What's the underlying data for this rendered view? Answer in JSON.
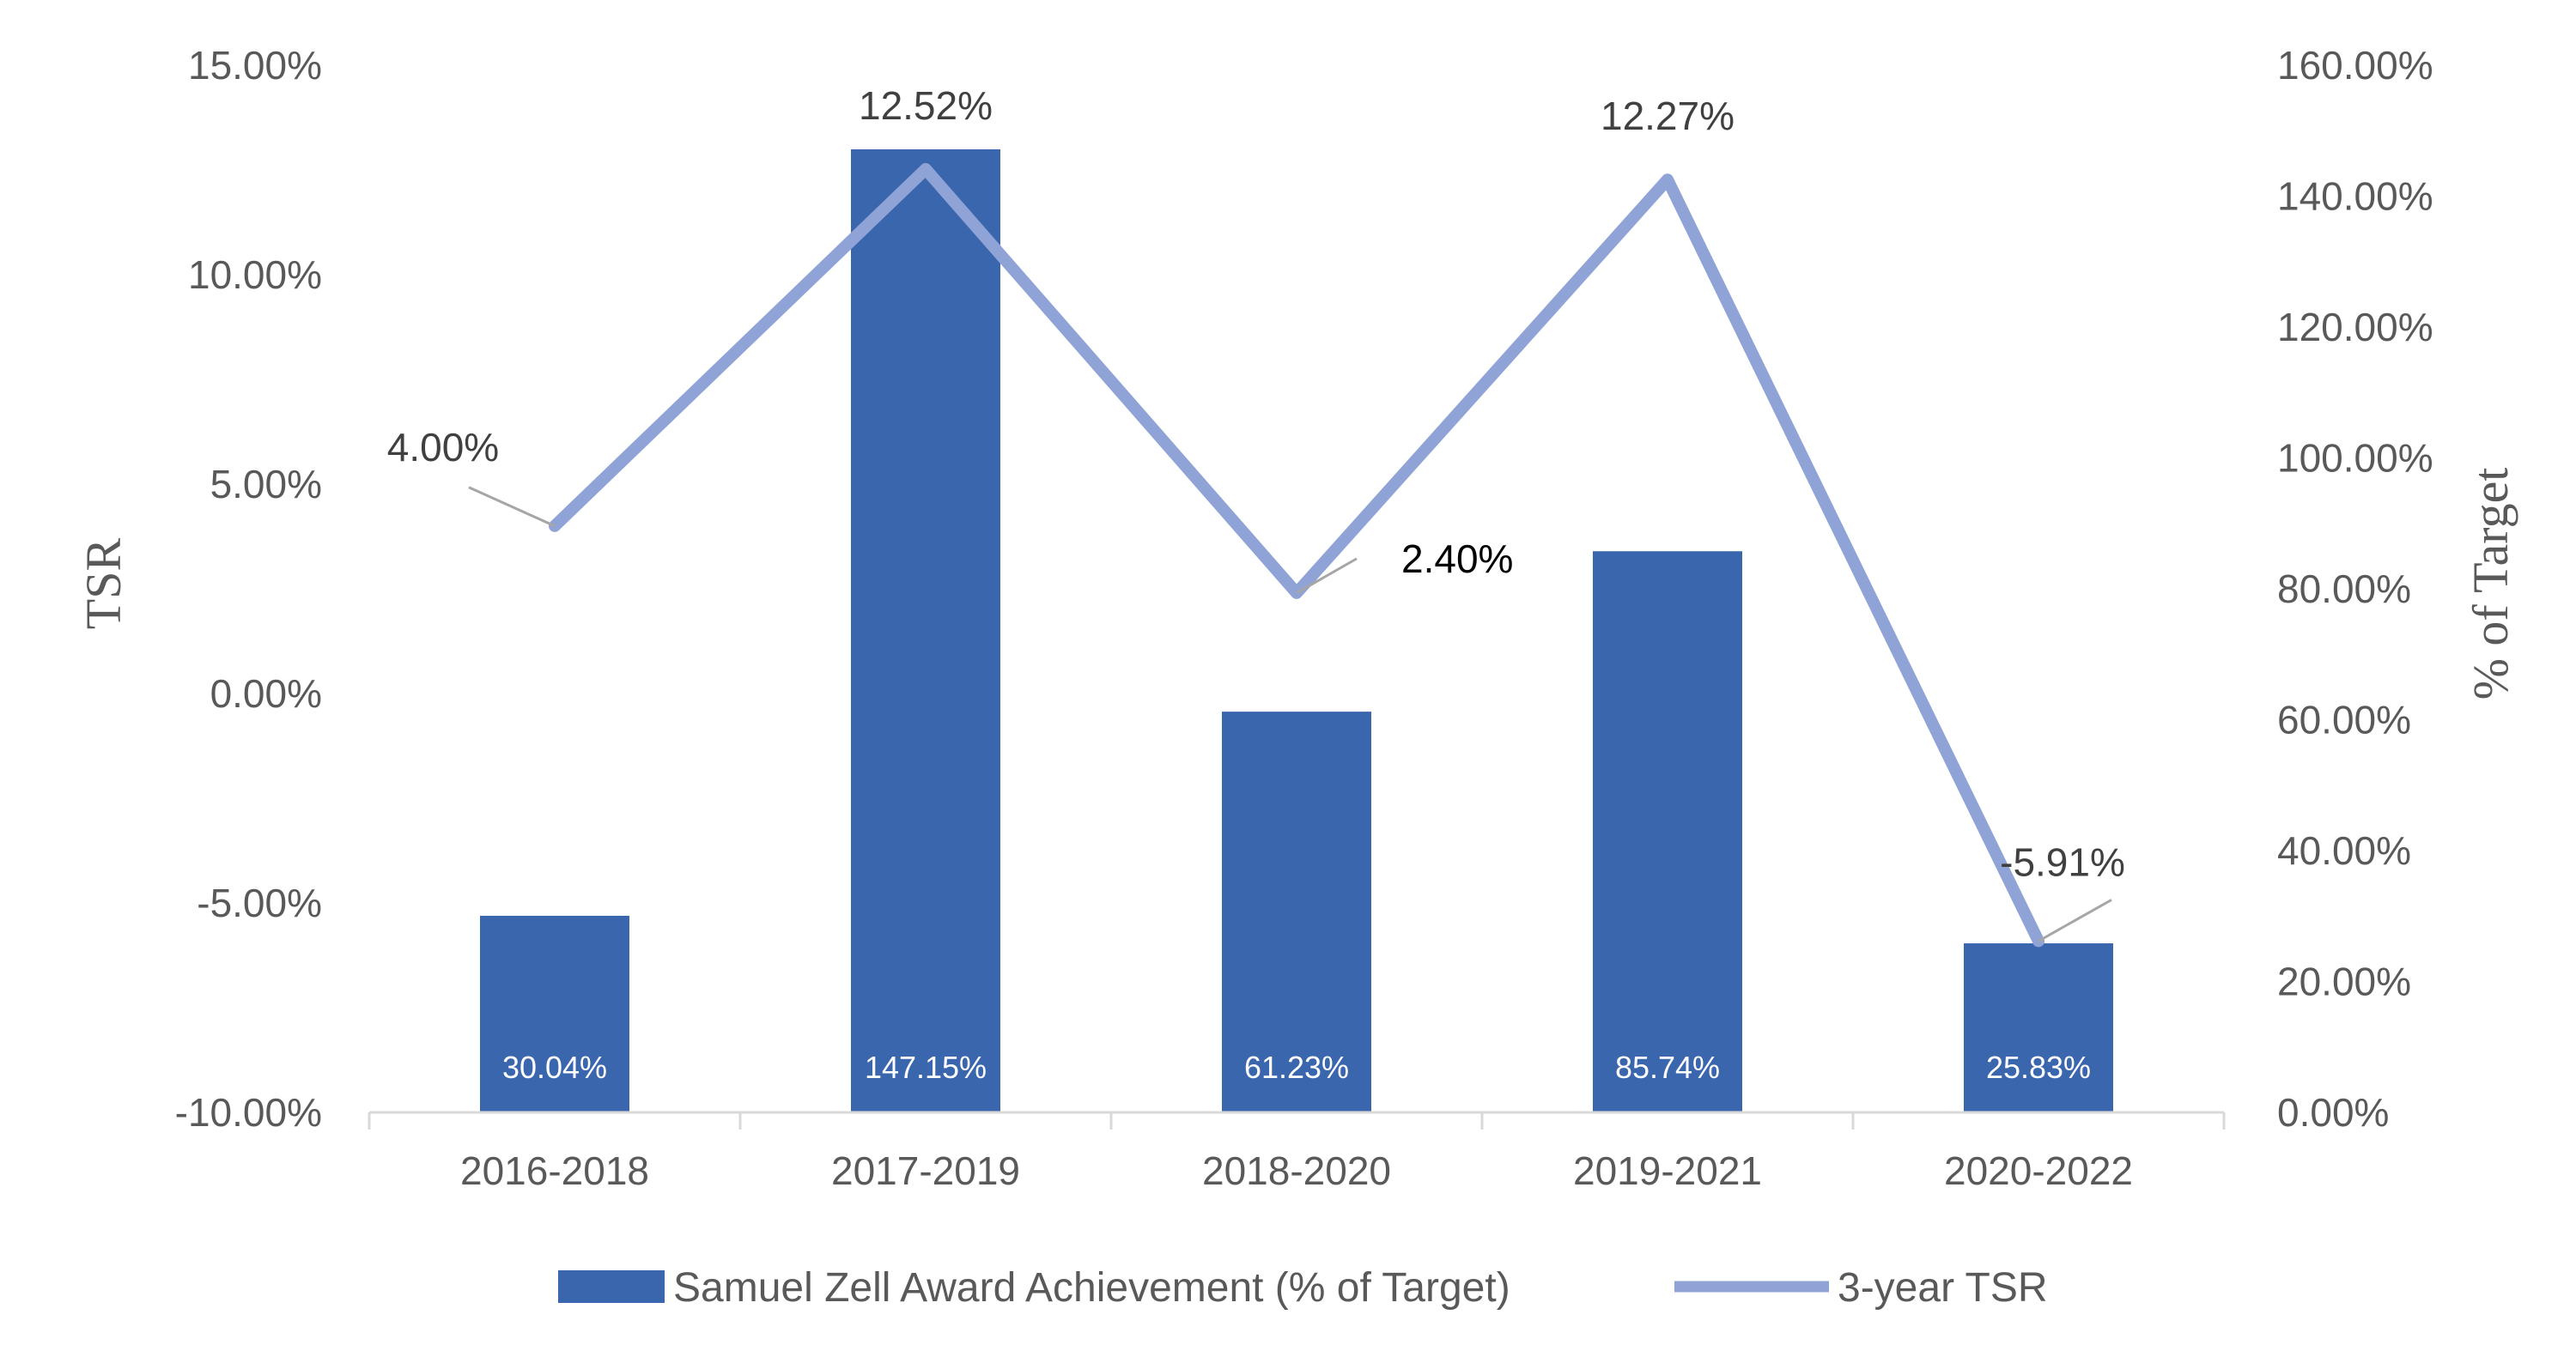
{
  "chart_data": {
    "type": "bar",
    "categories": [
      "2016-2018",
      "2017-2019",
      "2018-2020",
      "2019-2021",
      "2020-2022"
    ],
    "series": [
      {
        "name": "Samuel Zell Award Achievement (% of Target)",
        "type": "bar",
        "axis": "right",
        "values": [
          30.04,
          147.15,
          61.23,
          85.74,
          25.83
        ],
        "labels": [
          "30.04%",
          "147.15%",
          "61.23%",
          "85.74%",
          "25.83%"
        ],
        "color": "#3a66ae"
      },
      {
        "name": "3-year TSR",
        "type": "line",
        "axis": "left",
        "values": [
          4.0,
          12.52,
          2.4,
          12.27,
          -5.91
        ],
        "labels": [
          "4.00%",
          "12.52%",
          "2.40%",
          "12.27%",
          "-5.91%"
        ],
        "color": "#8fa3d6"
      }
    ],
    "y_left": {
      "label": "TSR",
      "range": [
        -10,
        15
      ],
      "ticks": [
        15,
        10,
        5,
        0,
        -5,
        -10
      ],
      "tick_labels": [
        "15.00%",
        "10.00%",
        "5.00%",
        "0.00%",
        "-5.00%",
        "-10.00%"
      ]
    },
    "y_right": {
      "label": "% of Target",
      "range": [
        0,
        160
      ],
      "ticks": [
        160,
        140,
        120,
        100,
        80,
        60,
        40,
        20,
        0
      ],
      "tick_labels": [
        "160.00%",
        "140.00%",
        "120.00%",
        "100.00%",
        "80.00%",
        "60.00%",
        "40.00%",
        "20.00%",
        "0.00%"
      ]
    },
    "legend_position": "bottom",
    "grid": false
  }
}
